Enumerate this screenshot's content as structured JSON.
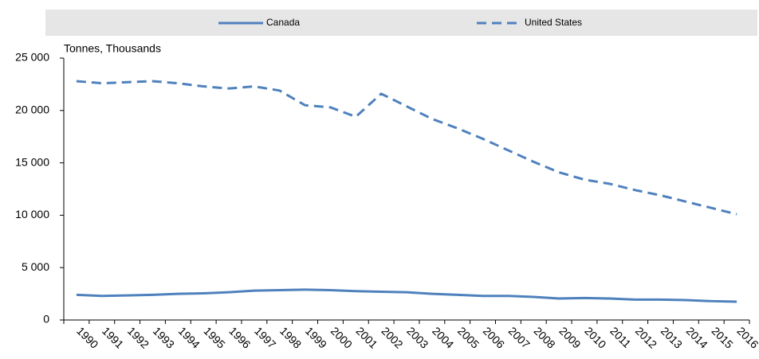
{
  "chart_data": {
    "type": "line",
    "y_label": "Tonnes, Thousands",
    "categories": [
      "1990",
      "1991",
      "1992",
      "1993",
      "1994",
      "1995",
      "1996",
      "1997",
      "1998",
      "1999",
      "2000",
      "2001",
      "2002",
      "2003",
      "2004",
      "2005",
      "2006",
      "2007",
      "2008",
      "2009",
      "2010",
      "2011",
      "2012",
      "2013",
      "2014",
      "2015",
      "2016"
    ],
    "series": [
      {
        "name": "Canada",
        "color": "#4f81bd",
        "dash": false,
        "values": [
          2400,
          2300,
          2350,
          2400,
          2500,
          2550,
          2650,
          2800,
          2850,
          2900,
          2850,
          2750,
          2700,
          2650,
          2500,
          2400,
          2300,
          2300,
          2200,
          2050,
          2100,
          2050,
          1950,
          1950,
          1900,
          1800,
          1750
        ]
      },
      {
        "name": "United States",
        "color": "#4f81bd",
        "dash": true,
        "values": [
          22800,
          22600,
          22700,
          22800,
          22600,
          22300,
          22100,
          22300,
          21900,
          20500,
          20300,
          19400,
          21600,
          20400,
          19200,
          18300,
          17300,
          16200,
          15100,
          14100,
          13400,
          13000,
          12400,
          11900,
          11300,
          10700,
          10100
        ]
      }
    ],
    "ylim": [
      0,
      25000
    ],
    "yticks": [
      0,
      {
        "value": 5000,
        "label": "5 000"
      },
      {
        "value": 10000,
        "label": "10 000"
      },
      {
        "value": 15000,
        "label": "15 000"
      },
      {
        "value": 20000,
        "label": "20 000"
      },
      {
        "value": 25000,
        "label": "25 000"
      }
    ],
    "grid": false,
    "legend": "top"
  }
}
